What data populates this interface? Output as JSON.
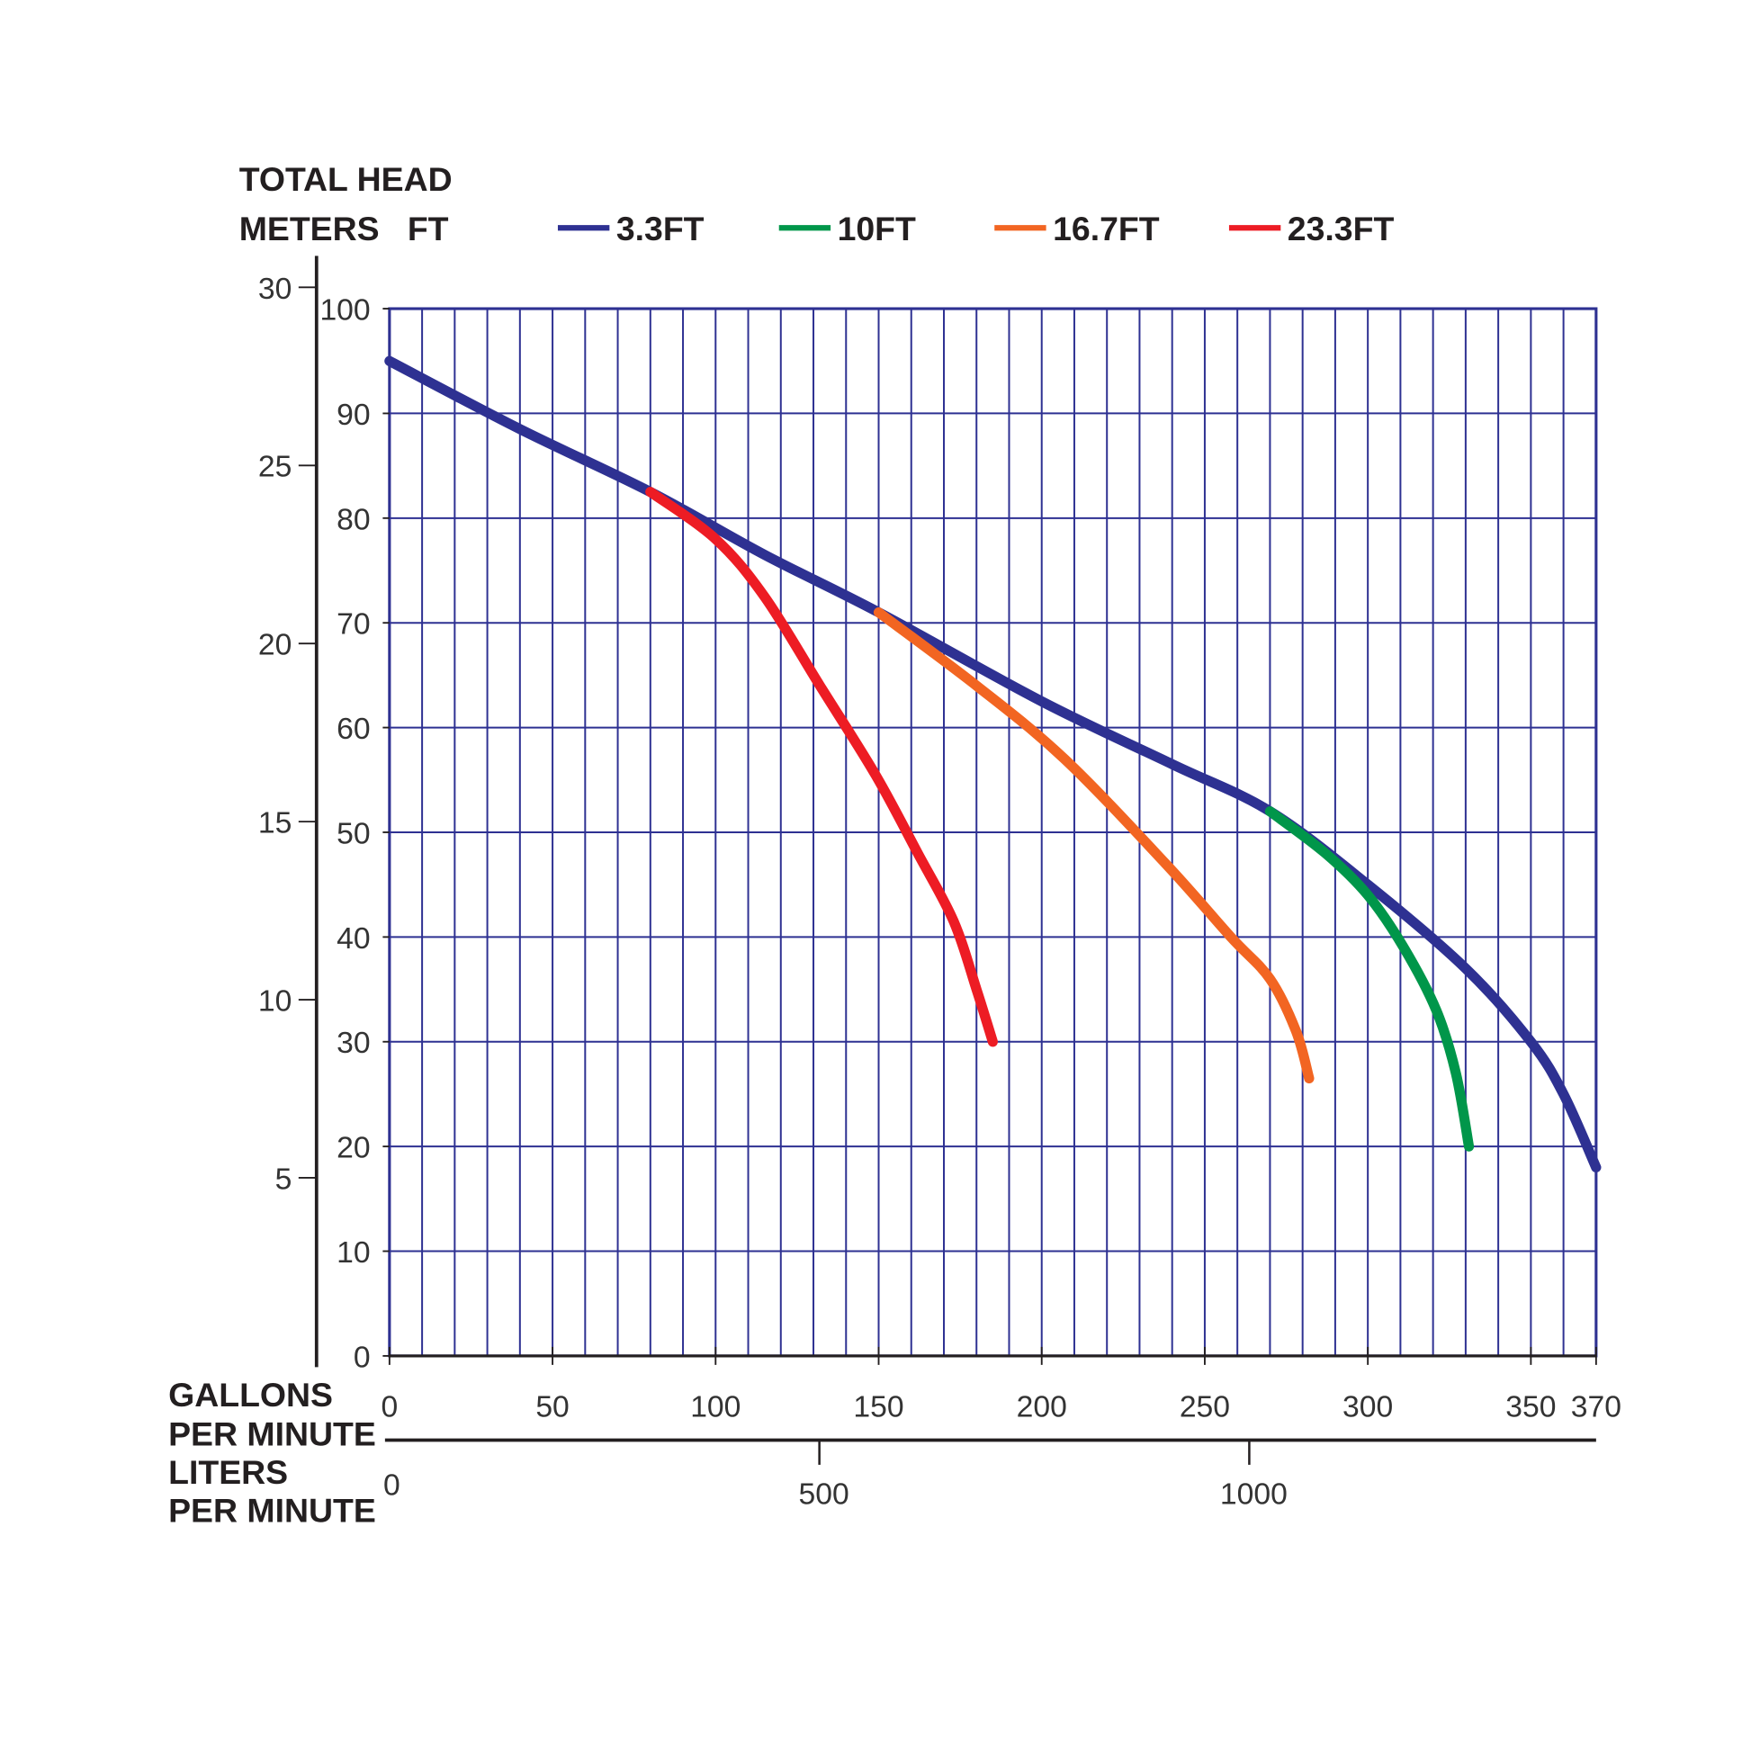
{
  "chart_data": {
    "type": "line",
    "title_lines": [
      "TOTAL HEAD",
      "METERS",
      "FT"
    ],
    "xlabel_primary": [
      "GALLONS",
      "PER MINUTE"
    ],
    "xlabel_secondary": [
      "LITERS",
      "PER MINUTE"
    ],
    "xlim": [
      0,
      370
    ],
    "ylim": [
      0,
      100
    ],
    "x_ticks": [
      0,
      50,
      100,
      150,
      200,
      250,
      300,
      350,
      370
    ],
    "y_ticks_ft": [
      0,
      10,
      20,
      30,
      40,
      50,
      60,
      70,
      80,
      90,
      100
    ],
    "y_ticks_m": [
      5,
      10,
      15,
      20,
      25,
      30
    ],
    "lpm_ticks": [
      0,
      500,
      1000
    ],
    "grid": true,
    "grid_color": "#2e3192",
    "legend_position": "top",
    "series": [
      {
        "name": "3.3FT",
        "color": "#2e3192",
        "points": [
          [
            0,
            95
          ],
          [
            40,
            88.5
          ],
          [
            80,
            82.5
          ],
          [
            115,
            76.5
          ],
          [
            150,
            71
          ],
          [
            200,
            62.5
          ],
          [
            240,
            56.5
          ],
          [
            270,
            52
          ],
          [
            300,
            45
          ],
          [
            330,
            37
          ],
          [
            350,
            30
          ],
          [
            360,
            25
          ],
          [
            370,
            18
          ]
        ]
      },
      {
        "name": "10FT",
        "color": "#00964a",
        "points": [
          [
            270,
            52
          ],
          [
            287,
            48
          ],
          [
            300,
            44
          ],
          [
            311,
            39
          ],
          [
            321,
            33
          ],
          [
            327,
            27
          ],
          [
            331,
            20
          ]
        ]
      },
      {
        "name": "16.7FT",
        "color": "#f26522",
        "points": [
          [
            150,
            71
          ],
          [
            180,
            64
          ],
          [
            207,
            57
          ],
          [
            238,
            47
          ],
          [
            258,
            40
          ],
          [
            270,
            36
          ],
          [
            278,
            31
          ],
          [
            282,
            26.5
          ]
        ]
      },
      {
        "name": "23.3FT",
        "color": "#ed1c24",
        "points": [
          [
            80,
            82.5
          ],
          [
            100,
            78
          ],
          [
            115,
            72.5
          ],
          [
            132,
            64
          ],
          [
            149,
            55.5
          ],
          [
            162,
            48
          ],
          [
            173,
            41.5
          ],
          [
            180,
            35
          ],
          [
            185,
            30
          ]
        ]
      }
    ]
  }
}
